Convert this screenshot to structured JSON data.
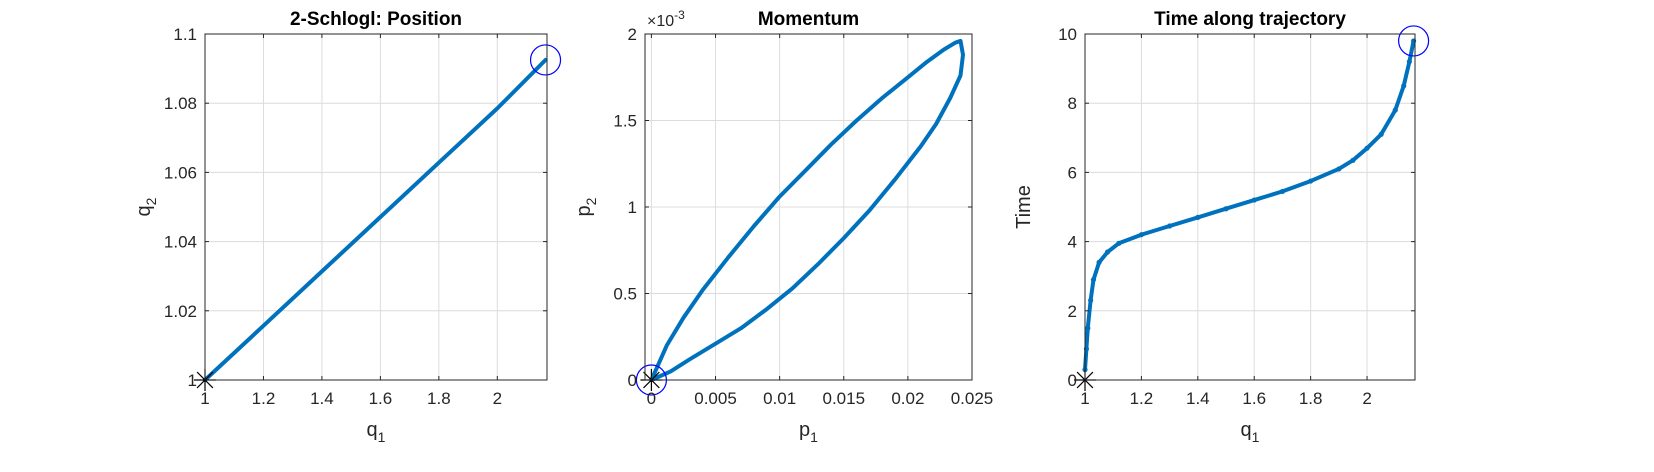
{
  "chart_data": [
    {
      "type": "line",
      "title": "2-Schlogl: Position",
      "xlabel": {
        "base": "q",
        "sub": "1"
      },
      "ylabel": {
        "base": "q",
        "sub": "2"
      },
      "xlim": [
        1,
        2.17
      ],
      "ylim": [
        1,
        1.1
      ],
      "xticks": [
        1,
        1.2,
        1.4,
        1.6,
        1.8,
        2
      ],
      "xtick_labels": [
        "1",
        "1.2",
        "1.4",
        "1.6",
        "1.8",
        "2"
      ],
      "yticks": [
        1,
        1.02,
        1.04,
        1.06,
        1.08,
        1.1
      ],
      "ytick_labels": [
        "1",
        "1.02",
        "1.04",
        "1.06",
        "1.08",
        "1.1"
      ],
      "grid": true,
      "series": [
        {
          "name": "trajectory",
          "color": "#0072BD",
          "x": [
            1.0,
            1.2,
            1.4,
            1.6,
            1.8,
            2.0,
            2.165
          ],
          "y": [
            1.0,
            1.0157,
            1.0314,
            1.0471,
            1.0628,
            1.0785,
            1.0925
          ]
        }
      ],
      "markers": [
        {
          "type": "asterisk",
          "color": "#000000",
          "x": 1.0,
          "y": 1.0
        },
        {
          "type": "circle",
          "color": "#0000FF",
          "x": 2.165,
          "y": 1.0925
        }
      ]
    },
    {
      "type": "line",
      "title": "Momentum",
      "xlabel": {
        "base": "p",
        "sub": "1"
      },
      "ylabel": {
        "base": "p",
        "sub": "2"
      },
      "exponent": {
        "base": "×10",
        "power": "-3"
      },
      "xlim": [
        -0.0005,
        0.025
      ],
      "ylim": [
        0,
        2
      ],
      "xticks": [
        0,
        0.005,
        0.01,
        0.015,
        0.02,
        0.025
      ],
      "xtick_labels": [
        "0",
        "0.005",
        "0.01",
        "0.015",
        "0.02",
        "0.025"
      ],
      "yticks": [
        0,
        0.5,
        1,
        1.5,
        2
      ],
      "ytick_labels": [
        "0",
        "0.5",
        "1",
        "1.5",
        "2"
      ],
      "grid": true,
      "series": [
        {
          "name": "trajectory",
          "color": "#0072BD",
          "x": [
            0,
            0.0012,
            0.0025,
            0.004,
            0.006,
            0.008,
            0.01,
            0.012,
            0.014,
            0.016,
            0.018,
            0.02,
            0.0215,
            0.0228,
            0.0237,
            0.0241,
            0.0243,
            0.0241,
            0.0233,
            0.0222,
            0.021,
            0.019,
            0.017,
            0.015,
            0.013,
            0.011,
            0.009,
            0.007,
            0.005,
            0.003,
            0.0015,
            0
          ],
          "y": [
            0,
            0.2,
            0.36,
            0.52,
            0.71,
            0.89,
            1.06,
            1.21,
            1.36,
            1.5,
            1.63,
            1.75,
            1.84,
            1.91,
            1.95,
            1.96,
            1.88,
            1.76,
            1.63,
            1.48,
            1.35,
            1.16,
            0.98,
            0.82,
            0.67,
            0.53,
            0.41,
            0.3,
            0.21,
            0.12,
            0.05,
            0
          ]
        }
      ],
      "markers": [
        {
          "type": "asterisk",
          "color": "#000000",
          "x": 0,
          "y": 0
        },
        {
          "type": "circle",
          "color": "#0000FF",
          "x": 0,
          "y": 0
        }
      ]
    },
    {
      "type": "scatter",
      "title": "Time along trajectory",
      "xlabel": {
        "base": "q",
        "sub": "1"
      },
      "ylabel": {
        "base": "Time",
        "sub": ""
      },
      "xlim": [
        1,
        2.17
      ],
      "ylim": [
        0,
        10
      ],
      "xticks": [
        1,
        1.2,
        1.4,
        1.6,
        1.8,
        2
      ],
      "xtick_labels": [
        "1",
        "1.2",
        "1.4",
        "1.6",
        "1.8",
        "2"
      ],
      "yticks": [
        0,
        2,
        4,
        6,
        8,
        10
      ],
      "ytick_labels": [
        "0",
        "2",
        "4",
        "6",
        "8",
        "10"
      ],
      "grid": true,
      "series": [
        {
          "name": "time",
          "color": "#0072BD",
          "x": [
            1.0,
            1.005,
            1.01,
            1.02,
            1.03,
            1.05,
            1.08,
            1.12,
            1.2,
            1.3,
            1.4,
            1.5,
            1.6,
            1.7,
            1.8,
            1.9,
            1.95,
            2.0,
            2.05,
            2.1,
            2.13,
            2.15,
            2.165
          ],
          "y": [
            0.3,
            0.9,
            1.5,
            2.3,
            2.9,
            3.4,
            3.7,
            3.95,
            4.2,
            4.45,
            4.7,
            4.95,
            5.2,
            5.45,
            5.75,
            6.1,
            6.35,
            6.7,
            7.1,
            7.8,
            8.5,
            9.2,
            9.8
          ]
        }
      ],
      "markers": [
        {
          "type": "asterisk",
          "color": "#000000",
          "x": 1.0,
          "y": 0
        },
        {
          "type": "circle",
          "color": "#0000FF",
          "x": 2.165,
          "y": 9.8
        }
      ]
    }
  ]
}
